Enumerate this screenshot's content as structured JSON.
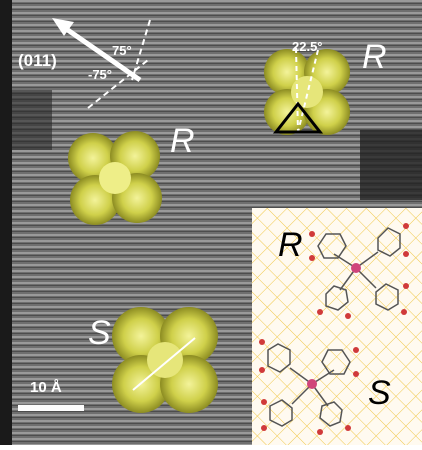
{
  "figure": {
    "labels": {
      "molecule_top_right": "R",
      "molecule_middle_left": "R",
      "molecule_bottom": "S"
    },
    "direction_label": "(011)",
    "angles": {
      "upper": "75°",
      "lower": "-75°",
      "triangle": "22.5°"
    },
    "scale_bar_label": "10 Å",
    "inset": {
      "label_top": "R",
      "label_bottom": "S"
    },
    "colors": {
      "background_stm": "#7a7a7a",
      "molecule": "#d6d64a",
      "inset_grid": "#f0c84a",
      "atom_oxygen": "#d03a3a",
      "atom_center": "#d0457a",
      "atom_carbon": "#555555"
    }
  }
}
